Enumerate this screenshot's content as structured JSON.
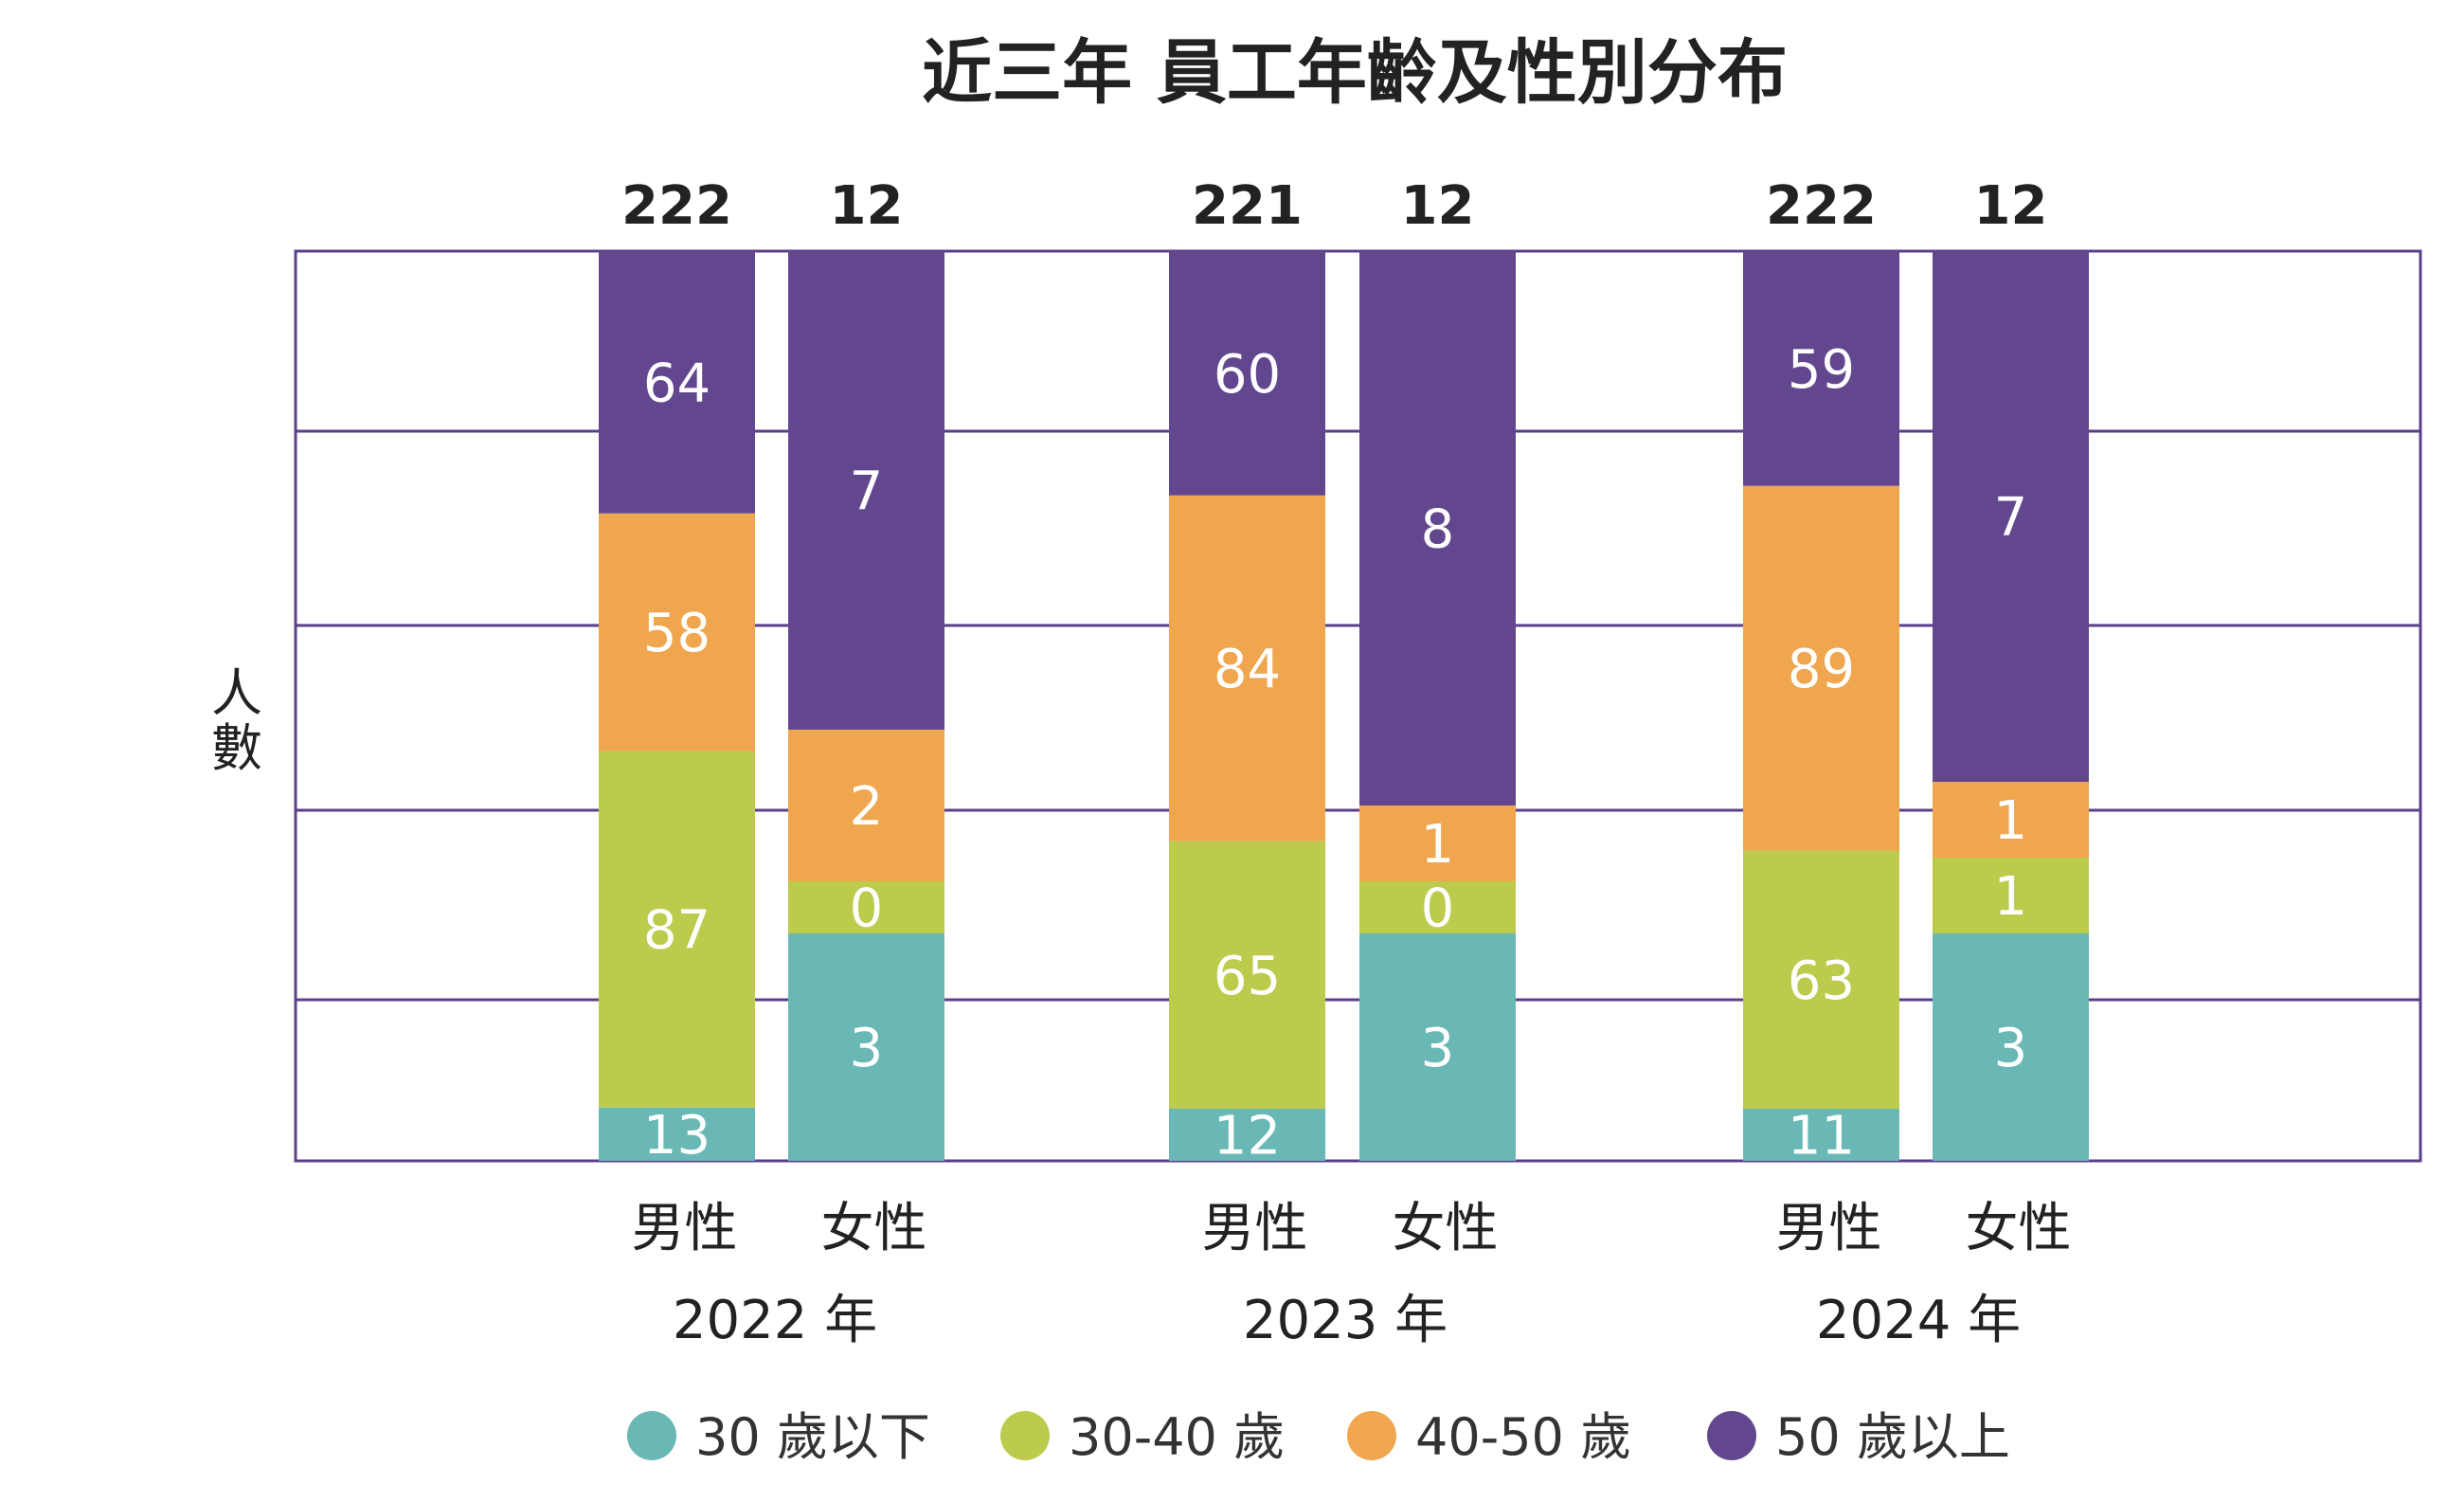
{
  "chart_data": {
    "type": "bar",
    "stacked": true,
    "title": "近三年 員工年齡及性別分布",
    "ylabel": "人數",
    "groups": [
      {
        "label": "2022 年",
        "bars": [
          {
            "label": "男性",
            "total": "222",
            "values": [
              13,
              87,
              58,
              64
            ]
          },
          {
            "label": "女性",
            "total": "12",
            "values": [
              3,
              0,
              2,
              7
            ]
          }
        ]
      },
      {
        "label": "2023 年",
        "bars": [
          {
            "label": "男性",
            "total": "221",
            "values": [
              12,
              65,
              84,
              60
            ]
          },
          {
            "label": "女性",
            "total": "12",
            "values": [
              3,
              0,
              1,
              8
            ]
          }
        ]
      },
      {
        "label": "2024 年",
        "bars": [
          {
            "label": "男性",
            "total": "222",
            "values": [
              11,
              63,
              89,
              59
            ]
          },
          {
            "label": "女性",
            "total": "12",
            "values": [
              3,
              1,
              1,
              7
            ]
          }
        ]
      }
    ],
    "series": [
      {
        "name": "30 歲以下",
        "color": "#69b8b6"
      },
      {
        "name": "30-40 歲",
        "color": "#bccb4c"
      },
      {
        "name": "40-50 歲",
        "color": "#efa64e"
      },
      {
        "name": "50 歲以上",
        "color": "#63478e"
      }
    ],
    "grid": true,
    "frame_color": "#5b3f8a",
    "legend_position": "bottom"
  }
}
